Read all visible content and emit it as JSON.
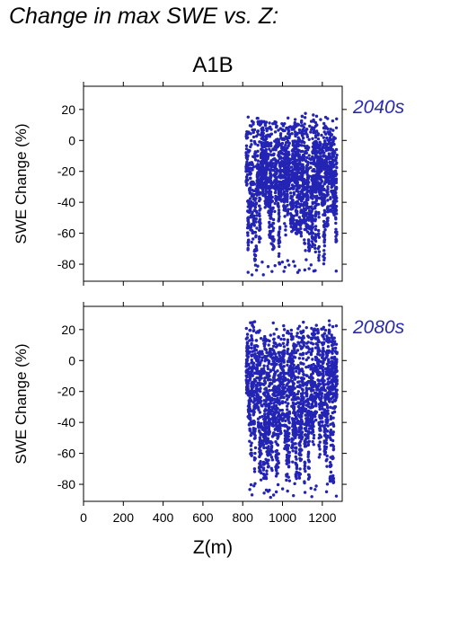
{
  "page": {
    "title": "Change in max SWE vs. Z:"
  },
  "chart_data": [
    {
      "type": "scatter",
      "title": "A1B",
      "period_label": "2040s",
      "ylabel": "SWE Change (%)",
      "xlabel": "",
      "xlim": [
        0,
        1300
      ],
      "ylim": [
        -91,
        35
      ],
      "yticks": [
        20,
        0,
        -20,
        -40,
        -60,
        -80
      ],
      "x_points_range": [
        820,
        1270
      ],
      "y_points_range": [
        -87,
        19
      ],
      "point_color": "#2424b4"
    },
    {
      "type": "scatter",
      "title": "",
      "period_label": "2080s",
      "ylabel": "SWE Change (%)",
      "xlabel": "Z(m)",
      "xlim": [
        0,
        1300
      ],
      "ylim": [
        -91,
        35
      ],
      "yticks": [
        20,
        0,
        -20,
        -40,
        -60,
        -80
      ],
      "xticks": [
        0,
        200,
        400,
        600,
        800,
        1000,
        1200
      ],
      "x_points_range": [
        820,
        1270
      ],
      "y_points_range": [
        -89,
        28
      ],
      "point_color": "#2424b4"
    }
  ],
  "colors": {
    "label_blue": "#2b2bb0",
    "points": "#2424b4"
  }
}
